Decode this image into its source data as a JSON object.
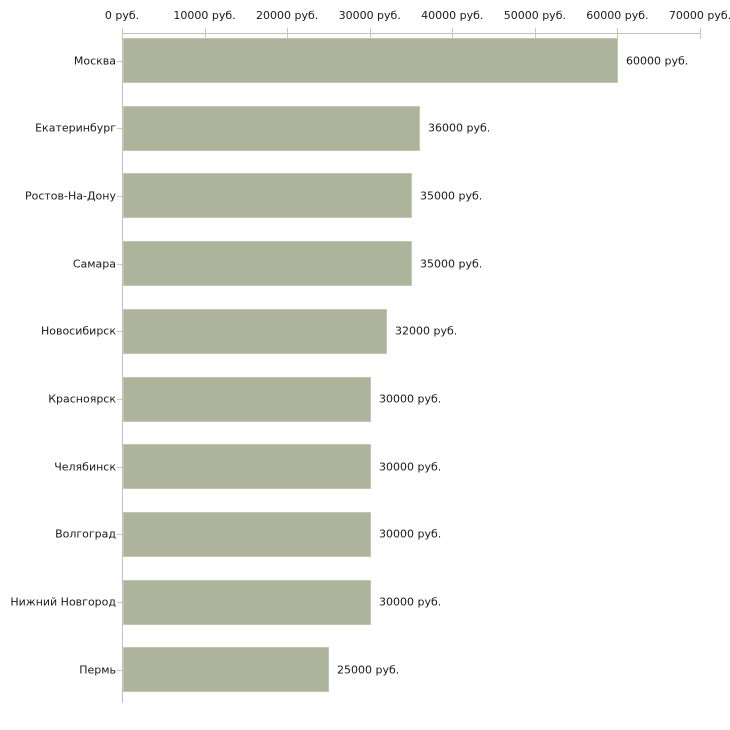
{
  "chart_data": {
    "type": "bar",
    "orientation": "horizontal",
    "title": "",
    "xlabel": "",
    "ylabel": "",
    "grid": false,
    "legend": false,
    "categories": [
      "Москва",
      "Екатеринбург",
      "Ростов-На-Дону",
      "Самара",
      "Новосибирск",
      "Красноярск",
      "Челябинск",
      "Волгоград",
      "Нижний Новгород",
      "Пермь"
    ],
    "values": [
      60000,
      36000,
      35000,
      35000,
      32000,
      30000,
      30000,
      30000,
      30000,
      25000
    ],
    "bar_labels": [
      "60000 руб.",
      "36000 руб.",
      "35000 руб.",
      "35000 руб.",
      "32000 руб.",
      "30000 руб.",
      "30000 руб.",
      "30000 руб.",
      "30000 руб.",
      "25000 руб."
    ],
    "x_axis": {
      "position": "top",
      "range": [
        0,
        70000
      ],
      "ticks": [
        0,
        10000,
        20000,
        30000,
        40000,
        50000,
        60000,
        70000
      ],
      "tick_labels": [
        "0 руб.",
        "10000 руб.",
        "20000 руб.",
        "30000 руб.",
        "40000 руб.",
        "50000 руб.",
        "60000 руб.",
        "70000 руб."
      ]
    }
  },
  "colors": {
    "background": "#ffffff",
    "bar_fill": "#aeb49b",
    "bar_border": "#c3c6b3",
    "axis_line": "#c0c0c0",
    "tick_mark": "#cccc99",
    "text": "#1a1a1a"
  }
}
